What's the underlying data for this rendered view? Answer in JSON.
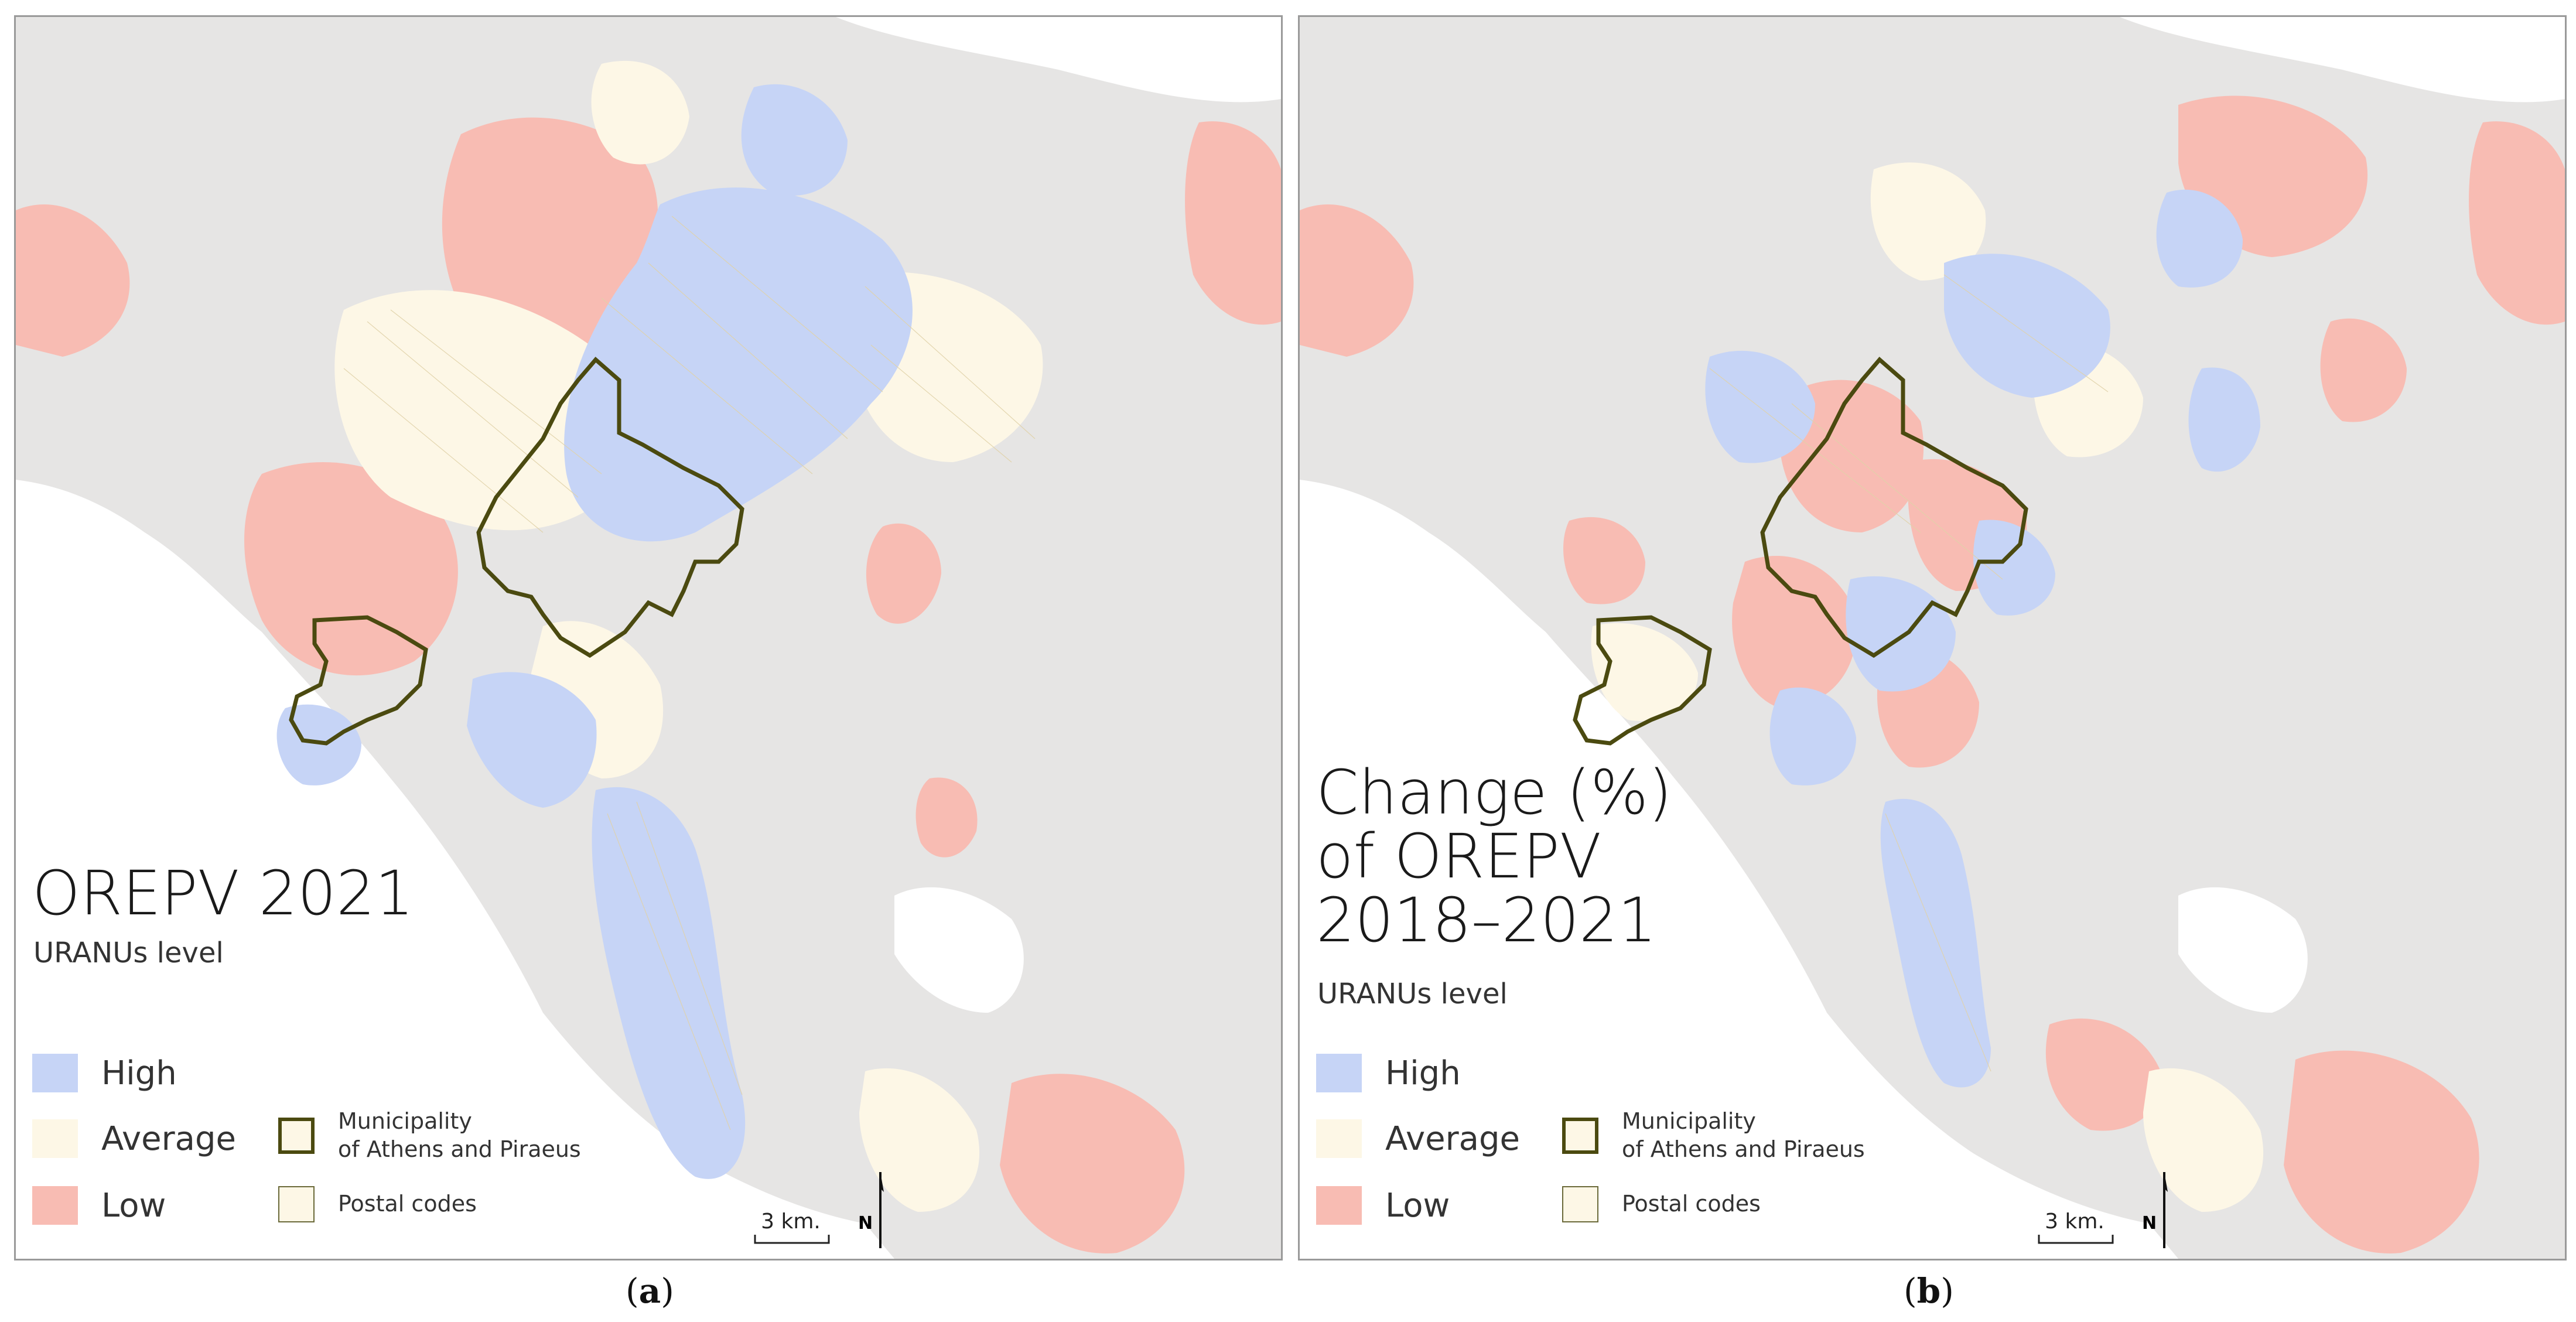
{
  "colors": {
    "background": "#e6e5e4",
    "water": "#ffffff",
    "high": "#c6d4f6",
    "average": "#fdf7e6",
    "low": "#f8bcb3",
    "boundary": "#4b4a10",
    "postal": "#e0d2a8"
  },
  "panels": [
    {
      "id": "a",
      "title": "OREPV 2021",
      "subtitle": "URANUs level",
      "caption_letter": "a",
      "legend": {
        "high": "High",
        "average": "Average",
        "low": "Low",
        "municipality": "Municipality\nof Athens and Piraeus",
        "postal": "Postal codes"
      },
      "scale_label": "3 km.",
      "north_label": "N"
    },
    {
      "id": "b",
      "title": "Change (%)\nof OREPV\n2018–2021",
      "subtitle": "URANUs level",
      "caption_letter": "b",
      "legend": {
        "high": "High",
        "average": "Average",
        "low": "Low",
        "municipality": "Municipality\nof Athens and Piraeus",
        "postal": "Postal codes"
      },
      "scale_label": "3 km.",
      "north_label": "N"
    }
  ]
}
